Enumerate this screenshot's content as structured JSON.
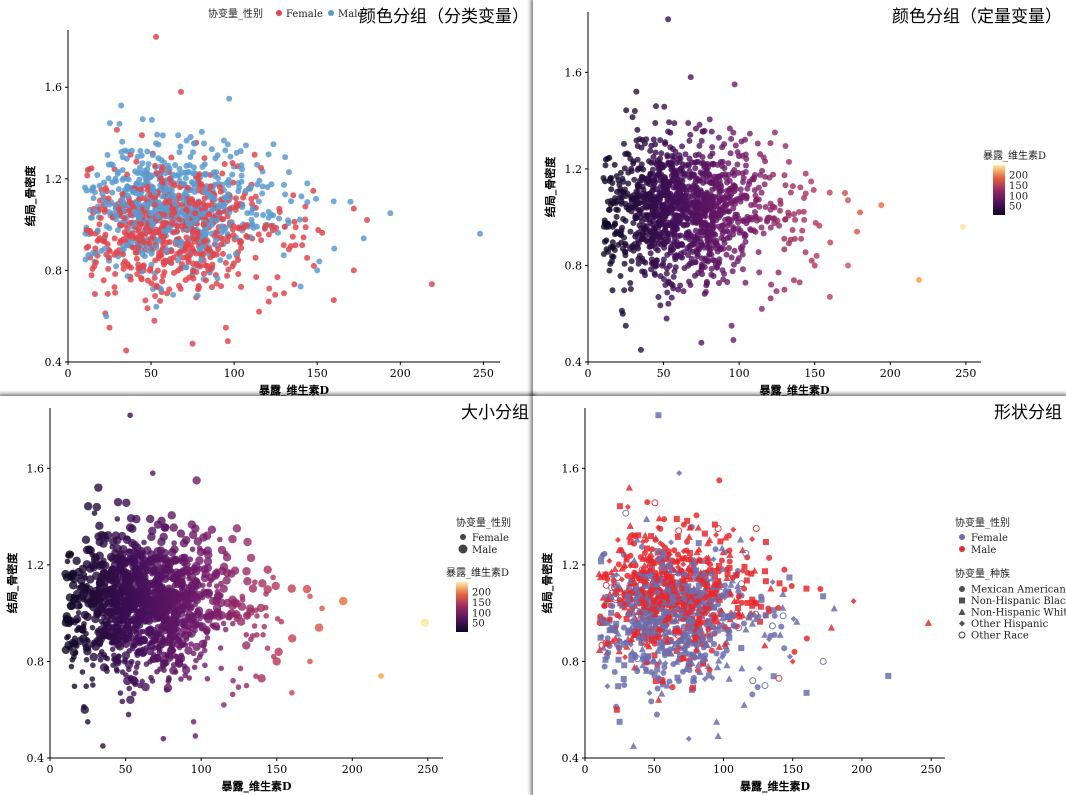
{
  "panels": [
    {
      "title": "颜色分组（分类变量）"
    },
    {
      "title": "颜色分组（定量变量）"
    },
    {
      "title": "大小分组"
    },
    {
      "title": "形状分组"
    }
  ],
  "chart_data": [
    {
      "type": "scatter",
      "title": "颜色分组（分类变量）",
      "xlabel": "暴露_维生素D",
      "ylabel": "结局_骨密度",
      "xlim": [
        0,
        260
      ],
      "ylim": [
        0.4,
        1.85
      ],
      "xticks": [
        "0",
        "50",
        "100",
        "150",
        "200",
        "250"
      ],
      "yticks": [
        "0.4",
        "0.8",
        "1.2",
        "1.6"
      ],
      "legend": {
        "title": "协变量_性别",
        "position": "top",
        "entries": [
          "Female",
          "Male"
        ]
      },
      "colors": {
        "Female": "#e0464d",
        "Male": "#5b9bd0"
      },
      "series": [
        {
          "name": "Female",
          "points": [
            [
              53,
              1.82
            ],
            [
              68,
              1.58
            ],
            [
              219,
              0.74
            ],
            [
              172,
              1.07
            ],
            [
              180,
              1.02
            ],
            [
              160,
              0.67
            ],
            [
              172,
              0.8
            ],
            [
              148,
              0.82
            ],
            [
              25,
              0.55
            ],
            [
              35,
              0.45
            ],
            [
              52,
              0.58
            ],
            [
              75,
              0.48
            ],
            [
              95,
              0.55
            ],
            [
              115,
              0.62
            ],
            [
              130,
              0.7
            ]
          ]
        },
        {
          "name": "Male",
          "points": [
            [
              97,
              1.55
            ],
            [
              248,
              0.96
            ],
            [
              194,
              1.05
            ],
            [
              170,
              1.1
            ],
            [
              32,
              1.52
            ],
            [
              45,
              1.46
            ],
            [
              23,
              0.6
            ],
            [
              140,
              0.73
            ],
            [
              150,
              0.8
            ],
            [
              178,
              0.94
            ]
          ]
        }
      ]
    },
    {
      "type": "scatter",
      "title": "颜色分组（定量变量）",
      "xlabel": "暴露_维生素D",
      "ylabel": "结局_骨密度",
      "xlim": [
        0,
        260
      ],
      "ylim": [
        0.4,
        1.85
      ],
      "xticks": [
        "0",
        "50",
        "100",
        "150",
        "200",
        "250"
      ],
      "yticks": [
        "0.4",
        "0.8",
        "1.2",
        "1.6"
      ],
      "colorbar": {
        "title": "暴露_维生素D",
        "ticks": [
          "200",
          "150",
          "100",
          "50"
        ],
        "range": [
          10,
          250
        ],
        "position": "right"
      }
    },
    {
      "type": "scatter",
      "title": "大小分组",
      "xlabel": "暴露_维生素D",
      "ylabel": "结局_骨密度",
      "xlim": [
        0,
        260
      ],
      "ylim": [
        0.4,
        1.85
      ],
      "xticks": [
        "0",
        "50",
        "100",
        "150",
        "200",
        "250"
      ],
      "yticks": [
        "0.4",
        "0.8",
        "1.2",
        "1.6"
      ],
      "size_legend": {
        "title": "协变量_性别",
        "entries": [
          "Female",
          "Male"
        ]
      },
      "colorbar": {
        "title": "暴露_维生素D",
        "ticks": [
          "200",
          "150",
          "100",
          "50"
        ],
        "range": [
          10,
          250
        ],
        "position": "right"
      }
    },
    {
      "type": "scatter",
      "title": "形状分组",
      "xlabel": "暴露_维生素D",
      "ylabel": "结局_骨密度",
      "xlim": [
        0,
        260
      ],
      "ylim": [
        0.4,
        1.85
      ],
      "xticks": [
        "0",
        "50",
        "100",
        "150",
        "200",
        "250"
      ],
      "yticks": [
        "0.4",
        "0.8",
        "1.2",
        "1.6"
      ],
      "color_legend": {
        "title": "协变量_性别",
        "entries": [
          "Female",
          "Male"
        ]
      },
      "shape_legend": {
        "title": "协变量_种族",
        "entries": [
          "Mexican American",
          "Non-Hispanic Black",
          "Non-Hispanic White",
          "Other Hispanic",
          "Other Race"
        ]
      },
      "colors": {
        "Female": "#6b6fae",
        "Male": "#e8282d"
      }
    }
  ]
}
